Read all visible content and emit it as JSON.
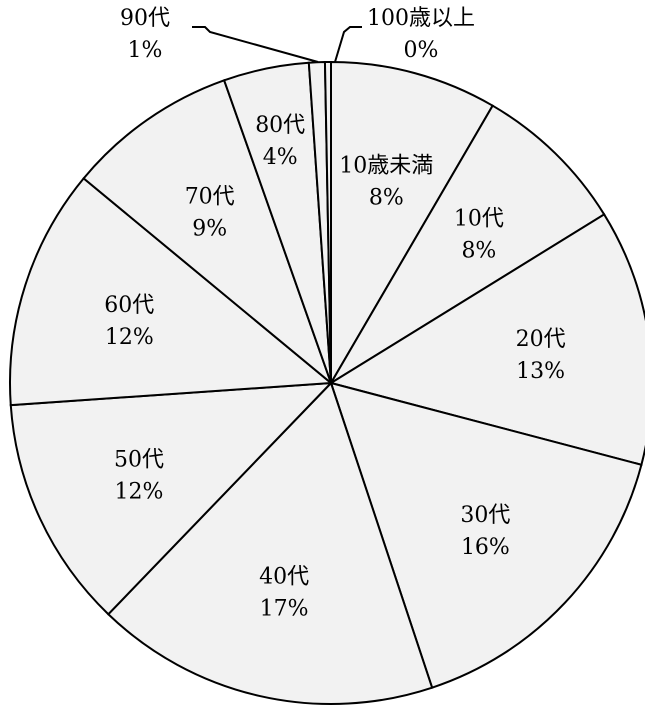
{
  "chart_data": {
    "type": "pie",
    "title": "",
    "start": "12 o'clock",
    "direction": "clockwise",
    "slices": [
      {
        "category": "10歳未満",
        "percent_label": "8%",
        "value": 8.4
      },
      {
        "category": "10代",
        "percent_label": "8%",
        "value": 7.8
      },
      {
        "category": "20代",
        "percent_label": "13%",
        "value": 12.9
      },
      {
        "category": "30代",
        "percent_label": "16%",
        "value": 15.8
      },
      {
        "category": "40代",
        "percent_label": "17%",
        "value": 17.3
      },
      {
        "category": "50代",
        "percent_label": "12%",
        "value": 11.7
      },
      {
        "category": "60代",
        "percent_label": "12%",
        "value": 12.1
      },
      {
        "category": "70代",
        "percent_label": "9%",
        "value": 8.6
      },
      {
        "category": "80代",
        "percent_label": "4%",
        "value": 4.3
      },
      {
        "category": "90代",
        "percent_label": "1%",
        "value": 0.8
      },
      {
        "category": "100歳以上",
        "percent_label": "0%",
        "value": 0.3
      }
    ],
    "colors": {
      "fill": "#f2f2f2",
      "stroke": "#000000"
    }
  }
}
